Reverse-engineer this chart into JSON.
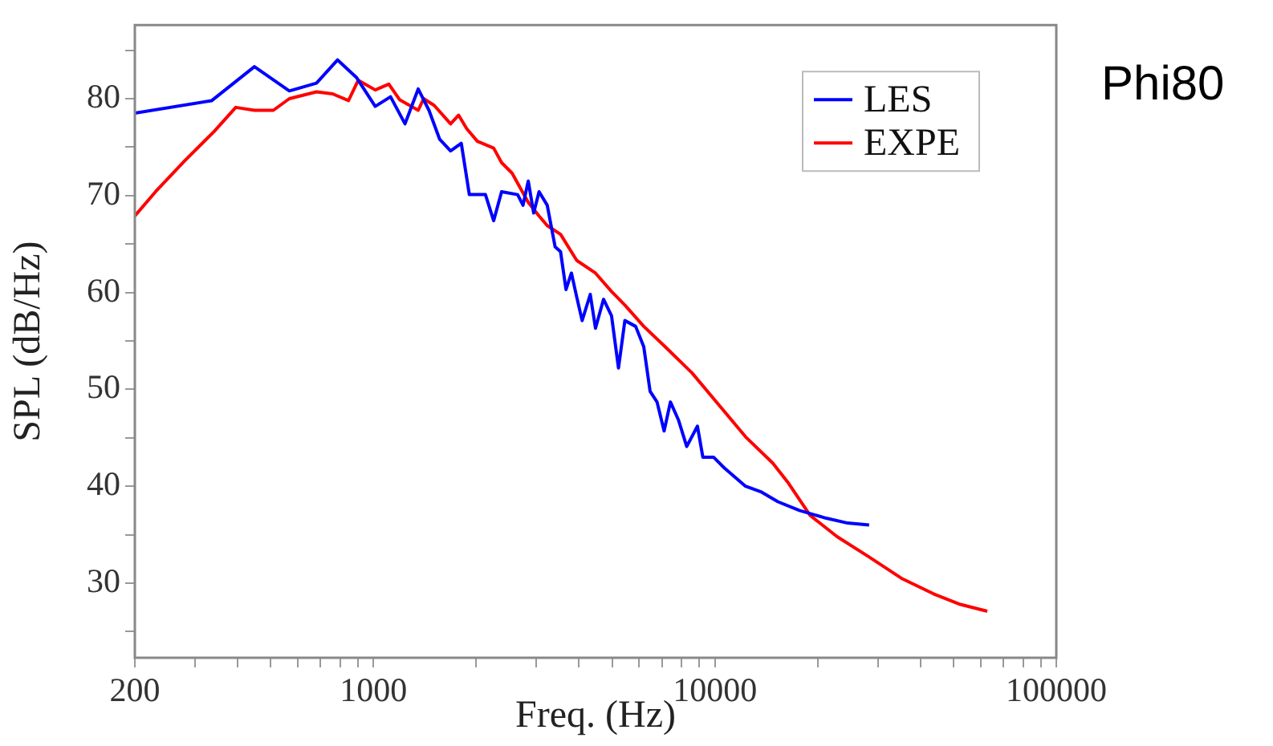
{
  "chart_data": {
    "type": "line",
    "xlabel": "Freq. (Hz)",
    "ylabel": "SPL (dB/Hz)",
    "annotations": [
      "Phi80"
    ],
    "log": "x",
    "grid": false,
    "legend": "top right",
    "marker": "none",
    "line_style": "solid",
    "xlim": [
      200,
      100000
    ],
    "xticks": [
      200,
      {
        "value": 300,
        "label": null
      },
      {
        "value": 400,
        "label": null
      },
      {
        "value": 500,
        "label": null
      },
      {
        "value": 600,
        "label": null
      },
      {
        "value": 700,
        "label": null
      },
      {
        "value": 800,
        "label": null
      },
      {
        "value": 900,
        "label": null
      },
      1000,
      {
        "value": 2000,
        "label": null
      },
      {
        "value": 3000,
        "label": null
      },
      {
        "value": 4000,
        "label": null
      },
      {
        "value": 5000,
        "label": null
      },
      {
        "value": 6000,
        "label": null
      },
      {
        "value": 7000,
        "label": null
      },
      {
        "value": 8000,
        "label": null
      },
      {
        "value": 9000,
        "label": null
      },
      10000,
      {
        "value": 20000,
        "label": null
      },
      {
        "value": 30000,
        "label": null
      },
      {
        "value": 40000,
        "label": null
      },
      {
        "value": 50000,
        "label": null
      },
      {
        "value": 60000,
        "label": null
      },
      {
        "value": 70000,
        "label": null
      },
      {
        "value": 80000,
        "label": null
      },
      {
        "value": 90000,
        "label": null
      },
      100000
    ],
    "ylim": [
      22.3,
      87.6
    ],
    "yticks": [
      {
        "value": 25,
        "label": null
      },
      30,
      {
        "value": 35,
        "label": null
      },
      40,
      {
        "value": 45,
        "label": null
      },
      50,
      {
        "value": 55,
        "label": null
      },
      60,
      {
        "value": 65,
        "label": null
      },
      70,
      {
        "value": 75,
        "label": null
      },
      80,
      {
        "value": 85,
        "label": null
      }
    ],
    "series": [
      {
        "name": "LES",
        "color": "#0000ff",
        "x": [
          200,
          336,
          448,
          567,
          681,
          785,
          891,
          1012,
          1122,
          1237,
          1352,
          1454,
          1563,
          1682,
          1808,
          1909,
          2128,
          2249,
          2373,
          2644,
          2742,
          2840,
          2946,
          3055,
          3228,
          3405,
          3532,
          3664,
          3800,
          3940,
          4085,
          4315,
          4470,
          4720,
          4980,
          5220,
          5450,
          5860,
          6190,
          6460,
          6770,
          7100,
          7410,
          7830,
          8270,
          8890,
          9220,
          9910,
          10650,
          12300,
          13700,
          15300,
          17700,
          21200,
          24500,
          28300
        ],
        "values": [
          78.5,
          79.8,
          83.3,
          80.8,
          81.6,
          84.0,
          82.2,
          79.2,
          80.2,
          77.4,
          81.0,
          78.8,
          75.8,
          74.6,
          75.4,
          70.1,
          70.1,
          67.4,
          70.4,
          70.1,
          69.0,
          71.5,
          68.2,
          70.4,
          69.0,
          64.7,
          64.2,
          60.3,
          62.0,
          59.5,
          57.1,
          59.8,
          56.3,
          59.3,
          57.6,
          52.2,
          57.1,
          56.5,
          54.4,
          49.8,
          48.7,
          45.7,
          48.7,
          46.8,
          44.1,
          46.2,
          43.0,
          43.0,
          41.9,
          40.0,
          39.4,
          38.4,
          37.5,
          36.7,
          36.2,
          36.0
        ]
      },
      {
        "name": "EXPE",
        "color": "#ff0000",
        "x": [
          200,
          230,
          280,
          341,
          395,
          448,
          509,
          567,
          681,
          759,
          845,
          902,
          1012,
          1109,
          1192,
          1352,
          1403,
          1507,
          1682,
          1775,
          1876,
          2015,
          2249,
          2373,
          2548,
          2840,
          3055,
          3228,
          3532,
          3940,
          4470,
          4980,
          5450,
          6190,
          7150,
          8570,
          10270,
          12300,
          14770,
          16440,
          19000,
          22800,
          28300,
          35200,
          43700,
          52400,
          62800
        ],
        "values": [
          67.9,
          70.4,
          73.6,
          76.6,
          79.1,
          78.8,
          78.8,
          80.0,
          80.7,
          80.5,
          79.8,
          81.9,
          80.9,
          81.5,
          79.9,
          78.8,
          80.0,
          79.3,
          77.4,
          78.3,
          76.9,
          75.6,
          74.9,
          73.4,
          72.3,
          69.3,
          67.9,
          66.9,
          66.0,
          63.3,
          62.0,
          60.1,
          58.7,
          56.5,
          54.4,
          51.7,
          48.4,
          45.1,
          42.4,
          40.3,
          37.0,
          34.8,
          32.7,
          30.5,
          28.9,
          27.8,
          27.1
        ]
      }
    ]
  }
}
